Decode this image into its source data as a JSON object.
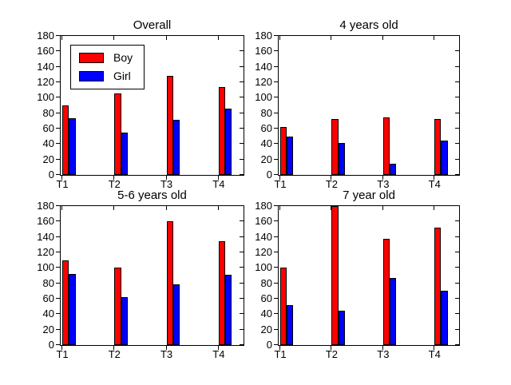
{
  "figure": {
    "background": "#ffffff",
    "text_color": "#000000"
  },
  "chart_data": [
    {
      "type": "bar",
      "title": "Overall",
      "categories": [
        "T1",
        "T2",
        "T3",
        "T4"
      ],
      "series": [
        {
          "name": "Boy",
          "color": "#ff0000",
          "values": [
            90,
            106,
            128,
            114
          ]
        },
        {
          "name": "Girl",
          "color": "#0000ff",
          "values": [
            73,
            55,
            71,
            86
          ]
        }
      ],
      "xlabel": "",
      "ylabel": "",
      "ylim": [
        0,
        180
      ],
      "ytick_step": 20,
      "grid": false,
      "bar_edge_color": "#000000",
      "legend": {
        "show": true,
        "position": "upper-left",
        "entries": [
          "Boy",
          "Girl"
        ]
      }
    },
    {
      "type": "bar",
      "title": "4 years old",
      "categories": [
        "T1",
        "T2",
        "T3",
        "T4"
      ],
      "series": [
        {
          "name": "Boy",
          "color": "#ff0000",
          "values": [
            62,
            72,
            75,
            72
          ]
        },
        {
          "name": "Girl",
          "color": "#0000ff",
          "values": [
            50,
            41,
            15,
            44
          ]
        }
      ],
      "xlabel": "",
      "ylabel": "",
      "ylim": [
        0,
        180
      ],
      "ytick_step": 20,
      "grid": false,
      "bar_edge_color": "#000000",
      "legend": {
        "show": false,
        "position": "",
        "entries": []
      }
    },
    {
      "type": "bar",
      "title": "5-6 years old",
      "categories": [
        "T1",
        "T2",
        "T3",
        "T4"
      ],
      "series": [
        {
          "name": "Boy",
          "color": "#ff0000",
          "values": [
            110,
            100,
            160,
            135
          ]
        },
        {
          "name": "Girl",
          "color": "#0000ff",
          "values": [
            92,
            62,
            79,
            91
          ]
        }
      ],
      "xlabel": "",
      "ylabel": "",
      "ylim": [
        0,
        180
      ],
      "ytick_step": 20,
      "grid": false,
      "bar_edge_color": "#000000",
      "legend": {
        "show": false,
        "position": "",
        "entries": []
      }
    },
    {
      "type": "bar",
      "title": "7 year old",
      "categories": [
        "T1",
        "T2",
        "T3",
        "T4"
      ],
      "series": [
        {
          "name": "Boy",
          "color": "#ff0000",
          "values": [
            100,
            180,
            138,
            152
          ]
        },
        {
          "name": "Girl",
          "color": "#0000ff",
          "values": [
            52,
            45,
            87,
            70
          ]
        }
      ],
      "xlabel": "",
      "ylabel": "",
      "ylim": [
        0,
        180
      ],
      "ytick_step": 20,
      "grid": false,
      "bar_edge_color": "#000000",
      "legend": {
        "show": false,
        "position": "",
        "entries": []
      }
    }
  ]
}
